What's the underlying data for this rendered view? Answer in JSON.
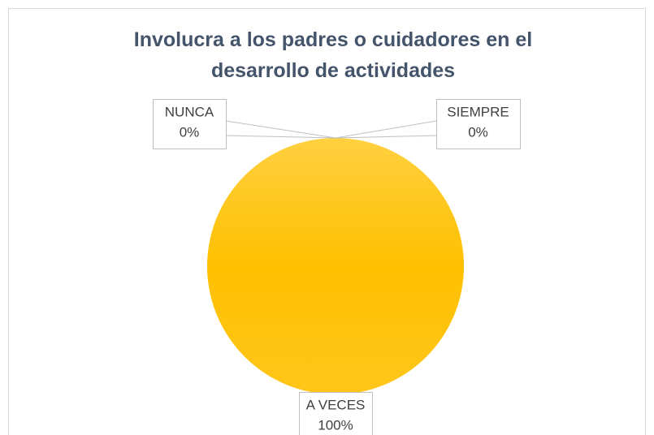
{
  "chart_data": {
    "type": "pie",
    "title": "Involucra a los padres o cuidadores en el desarrollo de actividades",
    "categories": [
      "NUNCA",
      "A VECES",
      "SIEMPRE"
    ],
    "values": [
      0,
      100,
      0
    ],
    "value_labels": [
      "0%",
      "100%",
      "0%"
    ],
    "colors": [
      "#4472c4",
      "#ffc000",
      "#a5a5a5"
    ]
  }
}
